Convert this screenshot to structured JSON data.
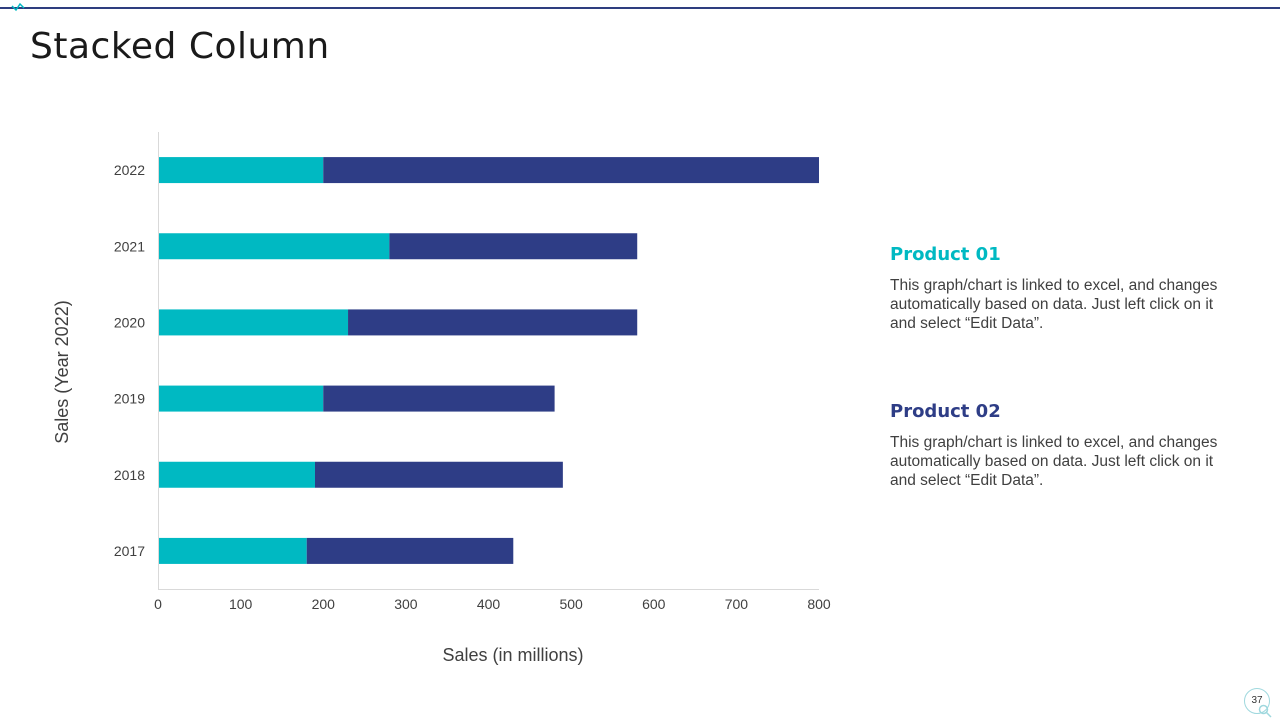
{
  "slide": {
    "title": "Stacked Column",
    "page_number": "37"
  },
  "legend": [
    {
      "heading": "Product 01",
      "text": "This graph/chart is linked to excel, and changes automatically based on data. Just left click on it and select “Edit Data”.",
      "color": "#00b9c2"
    },
    {
      "heading": "Product 02",
      "text": "This graph/chart is linked to excel, and changes automatically based on data. Just left click on it and select “Edit Data”.",
      "color": "#2e3d86"
    }
  ],
  "chart_data": {
    "type": "bar",
    "orientation": "horizontal",
    "stacked": true,
    "categories": [
      "2017",
      "2018",
      "2019",
      "2020",
      "2021",
      "2022"
    ],
    "series": [
      {
        "name": "Product 01",
        "values": [
          180,
          190,
          200,
          230,
          280,
          200
        ],
        "color": "#00b9c2"
      },
      {
        "name": "Product 02",
        "values": [
          250,
          300,
          280,
          350,
          300,
          600
        ],
        "color": "#2e3d86"
      }
    ],
    "xlabel": "Sales (in millions)",
    "ylabel": "Sales (Year 2022)",
    "xlim": [
      0,
      800
    ],
    "xticks": [
      "0",
      "100",
      "200",
      "300",
      "400",
      "500",
      "600",
      "700",
      "800"
    ],
    "grid": false
  }
}
